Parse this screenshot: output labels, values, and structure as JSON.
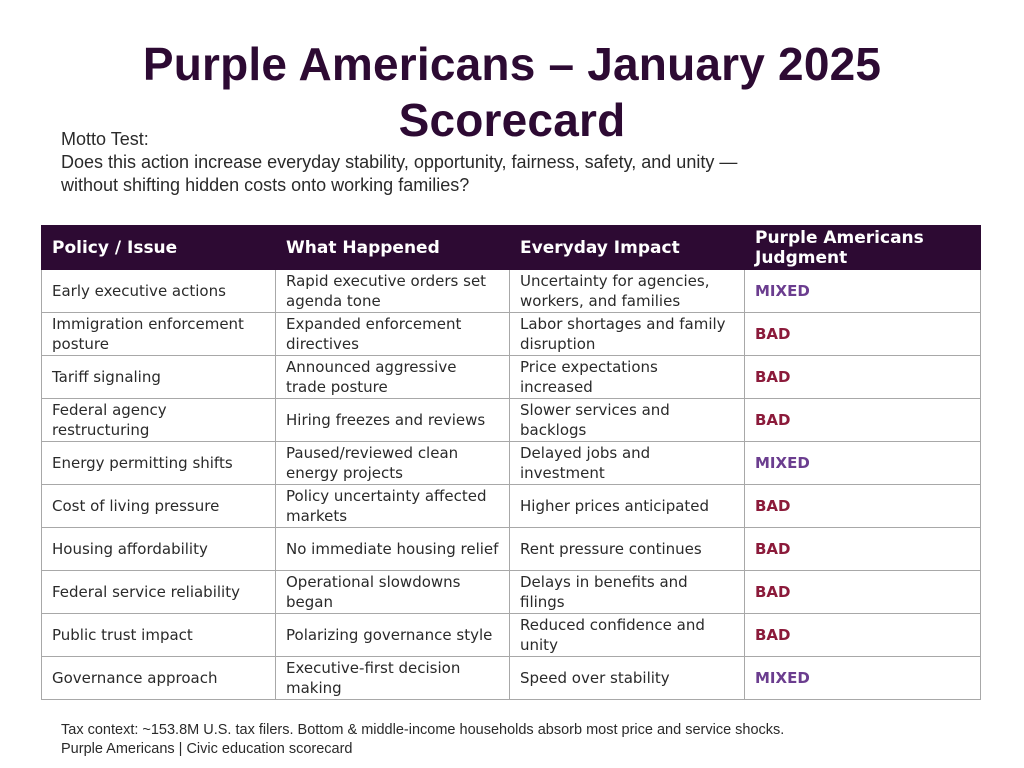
{
  "title": {
    "line1": "Purple Americans – January 2025",
    "line2": "Scorecard"
  },
  "motto": {
    "label": "Motto Test:",
    "line1": "Does this action increase everyday stability, opportunity, fairness, safety, and unity —",
    "line2": "without shifting hidden costs onto working families?"
  },
  "table": {
    "headers": [
      "Policy / Issue",
      "What Happened",
      "Everyday Impact",
      "Purple Americans Judgment"
    ],
    "rows": [
      {
        "policy": "Early executive actions",
        "happened": "Rapid executive orders set agenda tone",
        "impact": "Uncertainty for agencies, workers, and families",
        "judgment": "MIXED"
      },
      {
        "policy": "Immigration enforcement posture",
        "happened": "Expanded enforcement directives",
        "impact": "Labor shortages and family disruption",
        "judgment": "BAD"
      },
      {
        "policy": "Tariff signaling",
        "happened": "Announced aggressive trade posture",
        "impact": "Price expectations increased",
        "judgment": "BAD"
      },
      {
        "policy": "Federal agency restructuring",
        "happened": "Hiring freezes and reviews",
        "impact": "Slower services and backlogs",
        "judgment": "BAD"
      },
      {
        "policy": "Energy permitting shifts",
        "happened": "Paused/reviewed clean energy projects",
        "impact": "Delayed jobs and investment",
        "judgment": "MIXED"
      },
      {
        "policy": "Cost of living pressure",
        "happened": "Policy uncertainty affected markets",
        "impact": "Higher prices anticipated",
        "judgment": "BAD"
      },
      {
        "policy": "Housing affordability",
        "happened": "No immediate housing relief",
        "impact": "Rent pressure continues",
        "judgment": "BAD"
      },
      {
        "policy": "Federal service reliability",
        "happened": "Operational slowdowns began",
        "impact": "Delays in benefits and filings",
        "judgment": "BAD"
      },
      {
        "policy": "Public trust impact",
        "happened": "Polarizing governance style",
        "impact": "Reduced confidence and unity",
        "judgment": "BAD"
      },
      {
        "policy": "Governance approach",
        "happened": "Executive-first decision making",
        "impact": "Speed over stability",
        "judgment": "MIXED"
      }
    ]
  },
  "colors": {
    "brand_dark_purple": "#2d0a33",
    "judgment_bad": "#8b1a3a",
    "judgment_mixed": "#6b3d8f"
  },
  "footer": {
    "line1": "Tax context: ~153.8M U.S. tax filers. Bottom & middle-income households absorb most price and service shocks.",
    "line2": "Purple Americans | Civic education scorecard"
  }
}
